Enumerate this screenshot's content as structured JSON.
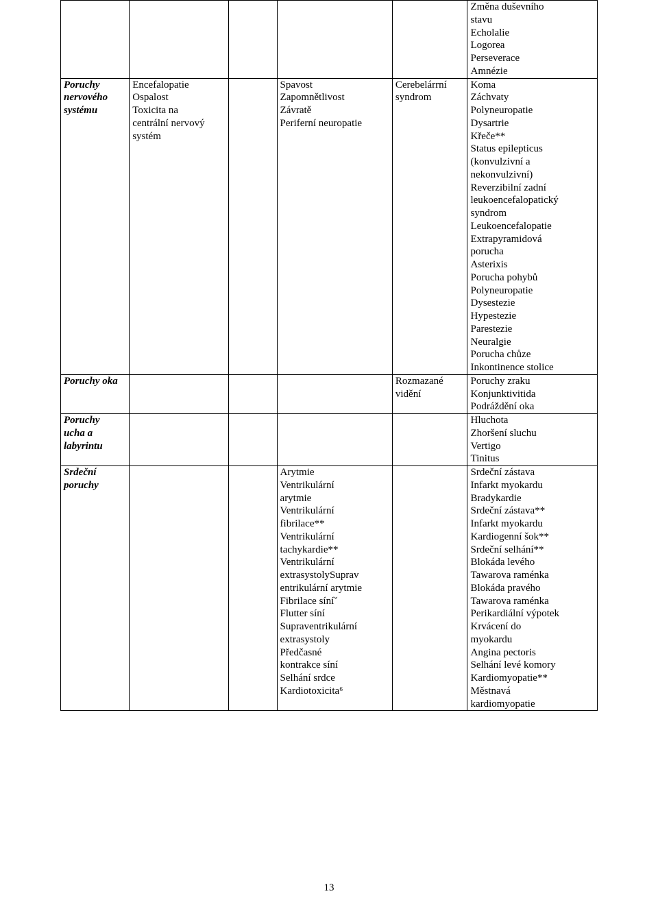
{
  "page_number": "13",
  "table": {
    "columns": [
      "col0",
      "col1",
      "col2",
      "col3",
      "col4",
      "col5"
    ],
    "rows": [
      {
        "c0": [],
        "c1": [],
        "c2": [],
        "c3": [],
        "c4": [],
        "c5": [
          "Změna duševního",
          "stavu",
          "Echolalie",
          "Logorea",
          "Perseverace",
          "Amnézie"
        ]
      },
      {
        "c0": [
          "Poruchy",
          "nervového",
          "systému"
        ],
        "c1": [
          "Encefalopatie",
          "Ospalost",
          "Toxicita na",
          "centrální nervový",
          "systém"
        ],
        "c2": [],
        "c3": [
          "Spavost",
          "Zapomnětlivost",
          "Závratě",
          "Periferní neuropatie"
        ],
        "c4": [
          "Cerebelárrní",
          "syndrom"
        ],
        "c5": [
          "Koma",
          "Záchvaty",
          "Polyneuropatie",
          "Dysartrie",
          "Křeče**",
          "Status epilepticus",
          "(konvulzivní a",
          "nekonvulzivní)",
          "Reverzibilní zadní",
          "leukoencefalopatický",
          "syndrom",
          "Leukoencefalopatie",
          "Extrapyramidová",
          "porucha",
          "Asterixis",
          "Porucha pohybů",
          "Polyneuropatie",
          "Dysestezie",
          "Hypestezie",
          "Parestezie",
          "Neuralgie",
          "Porucha chůze",
          "Inkontinence stolice"
        ]
      },
      {
        "c0": [
          "Poruchy oka"
        ],
        "c1": [],
        "c2": [],
        "c3": [],
        "c4": [
          "Rozmazané",
          "vidění"
        ],
        "c5": [
          "Poruchy zraku",
          "Konjunktivitida",
          "Podráždění oka"
        ]
      },
      {
        "c0": [
          "Poruchy",
          "ucha a",
          "labyrintu"
        ],
        "c1": [],
        "c2": [],
        "c3": [],
        "c4": [],
        "c5": [
          "Hluchota",
          "Zhoršení sluchu",
          "Vertigo",
          "Tinitus"
        ]
      },
      {
        "c0": [
          "Srdeční",
          "poruchy"
        ],
        "c1": [],
        "c2": [],
        "c3": [
          "Arytmie",
          "Ventrikulární",
          "arytmie",
          "Ventrikulární",
          "fibrilace**",
          "Ventrikulární",
          "tachykardie**",
          "Ventrikulární",
          "extrasystolySuprav",
          "entrikulární arytmie",
          "Fibrilace síníˇ",
          "Flutter síní",
          "Supraventrikulární",
          "extrasystoly",
          "Předčasné",
          "kontrakce síní",
          "Selhání srdce",
          "Kardiotoxicita⁶"
        ],
        "c4": [],
        "c5": [
          "Srdeční zástava",
          "Infarkt myokardu",
          "Bradykardie",
          "Srdeční zástava**",
          "Infarkt myokardu",
          "Kardiogenní šok**",
          "Srdeční selhání**",
          "Blokáda levého",
          "Tawarova raménka",
          "Blokáda pravého",
          "Tawarova raménka",
          "Perikardiální výpotek",
          "Krvácení do",
          "myokardu",
          "Angina pectoris",
          "Selhání levé komory",
          "Kardiomyopatie**",
          "Městnavá",
          "kardiomyopatie"
        ]
      }
    ]
  }
}
